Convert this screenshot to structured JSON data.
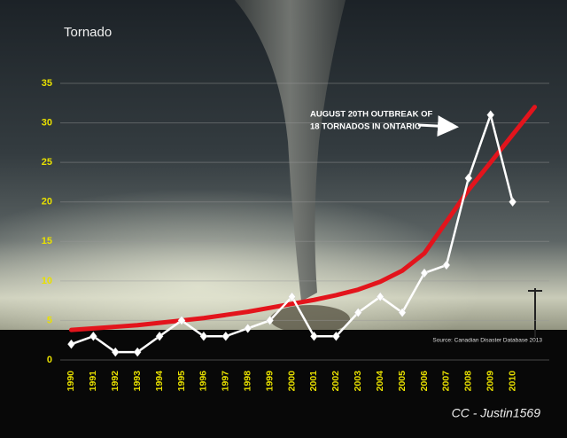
{
  "chart_data": {
    "type": "line",
    "title": "Tornado",
    "categories": [
      "1990",
      "1991",
      "1992",
      "1993",
      "1994",
      "1995",
      "1996",
      "1997",
      "1998",
      "1999",
      "2000",
      "2001",
      "2002",
      "2003",
      "2004",
      "2005",
      "2006",
      "2007",
      "2008",
      "2009",
      "2010",
      null
    ],
    "series": [
      {
        "color": "#ffffff",
        "values": [
          2,
          3,
          1,
          1,
          3,
          5,
          3,
          3,
          4,
          5,
          8,
          3,
          3,
          6,
          8,
          6,
          11,
          12,
          23,
          31,
          20,
          null
        ]
      },
      {
        "color": "#e3141c",
        "values": [
          3.8,
          4.0,
          4.2,
          4.4,
          4.7,
          5.0,
          5.3,
          5.7,
          6.1,
          6.6,
          7.1,
          7.6,
          8.2,
          8.9,
          9.9,
          11.3,
          13.5,
          17.5,
          21.5,
          25,
          28.5,
          32
        ]
      }
    ],
    "ylim": [
      0,
      35
    ],
    "yticks": [
      0,
      5,
      10,
      15,
      20,
      25,
      30,
      35
    ],
    "grid": true,
    "annotation": [
      "AUGUST 20TH OUTBREAK OF",
      "18 TORNADOS IN ONTARIO"
    ],
    "source": "Source: Canadian Disaster Database 2013",
    "credit": "CC - Justin1569"
  }
}
